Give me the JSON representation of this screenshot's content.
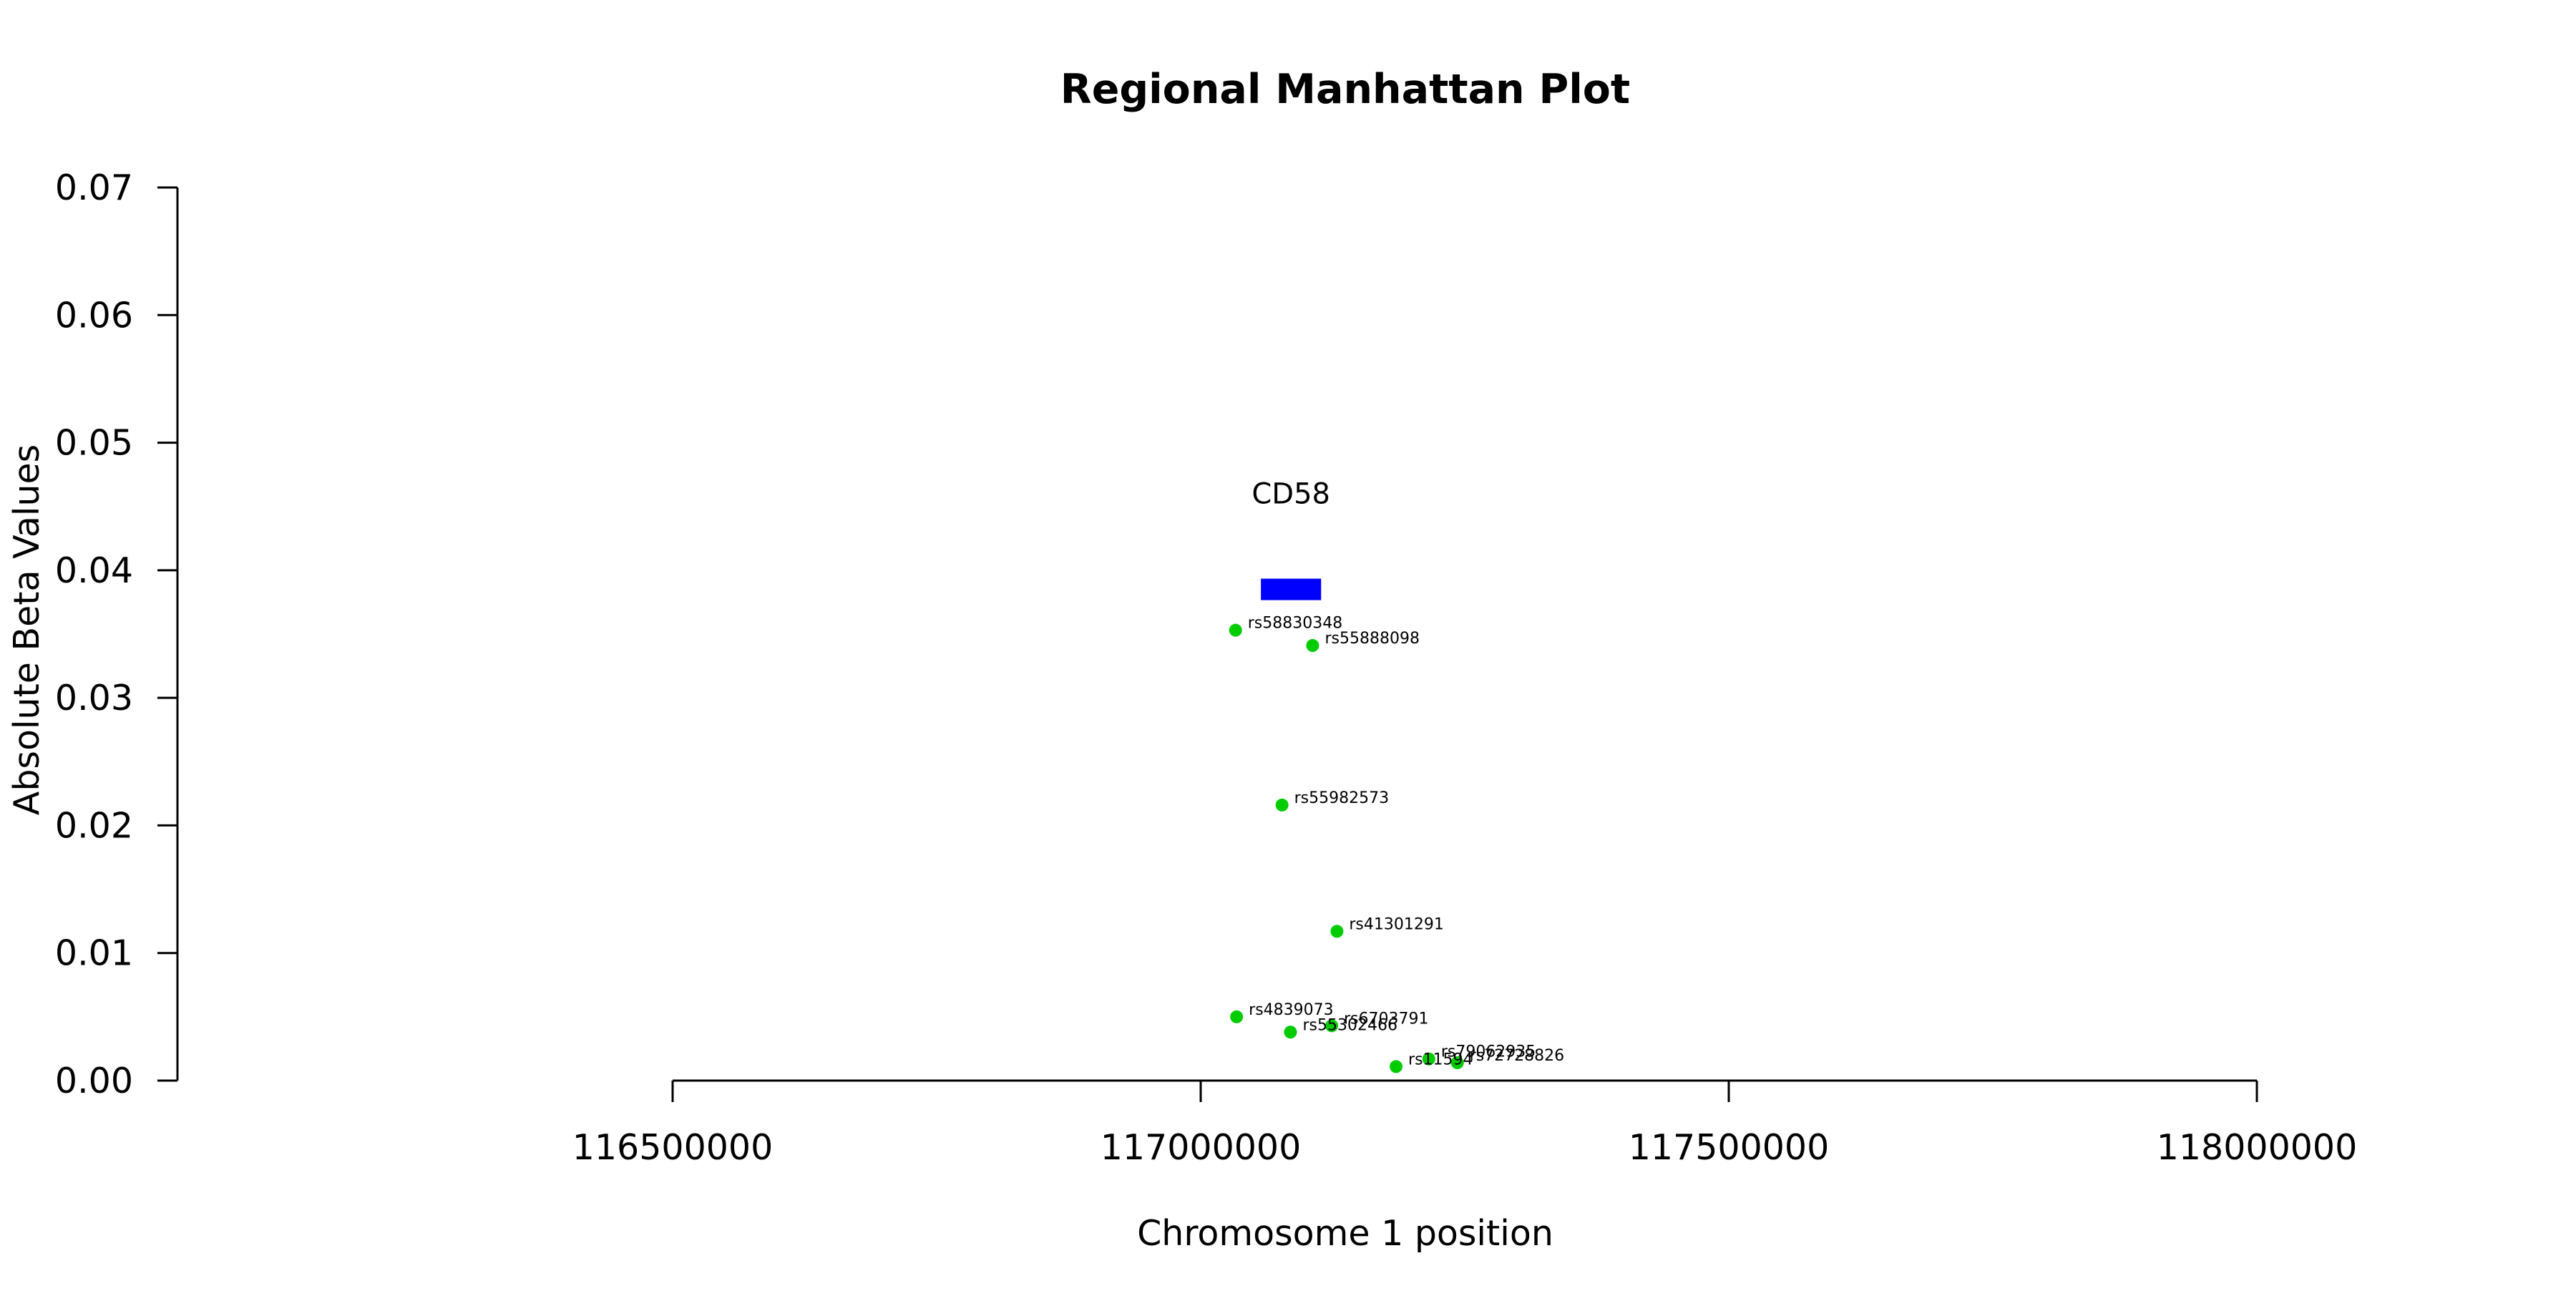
{
  "chart_data": {
    "type": "scatter",
    "title": "Regional Manhattan Plot",
    "xlabel": "Chromosome 1 position",
    "ylabel": "Absolute Beta Values",
    "xlim": [
      116500000,
      118000000
    ],
    "ylim": [
      0,
      0.07
    ],
    "x_ticks": [
      "116500000",
      "117000000",
      "117500000",
      "118000000"
    ],
    "y_ticks": [
      "0.00",
      "0.01",
      "0.02",
      "0.03",
      "0.04",
      "0.05",
      "0.06",
      "0.07"
    ],
    "grid": false,
    "point_color": "#00cc00",
    "gene": {
      "name": "CD58",
      "start": 117057000,
      "end": 117114000,
      "y": 0.0385,
      "color": "#0000ff"
    },
    "points": [
      {
        "label": "rs58830348",
        "x": 117033000,
        "y": 0.0353
      },
      {
        "label": "rs55888098",
        "x": 117106000,
        "y": 0.0341
      },
      {
        "label": "rs55982573",
        "x": 117077000,
        "y": 0.0216
      },
      {
        "label": "rs41301291",
        "x": 117129000,
        "y": 0.0117
      },
      {
        "label": "rs4839073",
        "x": 117034000,
        "y": 0.005
      },
      {
        "label": "rs6703791",
        "x": 117124000,
        "y": 0.0043
      },
      {
        "label": "rs55302466",
        "x": 117085000,
        "y": 0.0038
      },
      {
        "label": "rs79062935",
        "x": 117216000,
        "y": 0.0017
      },
      {
        "label": "rs72728826",
        "x": 117243000,
        "y": 0.0014
      },
      {
        "label": "rs11594",
        "x": 117185000,
        "y": 0.0011
      }
    ]
  }
}
